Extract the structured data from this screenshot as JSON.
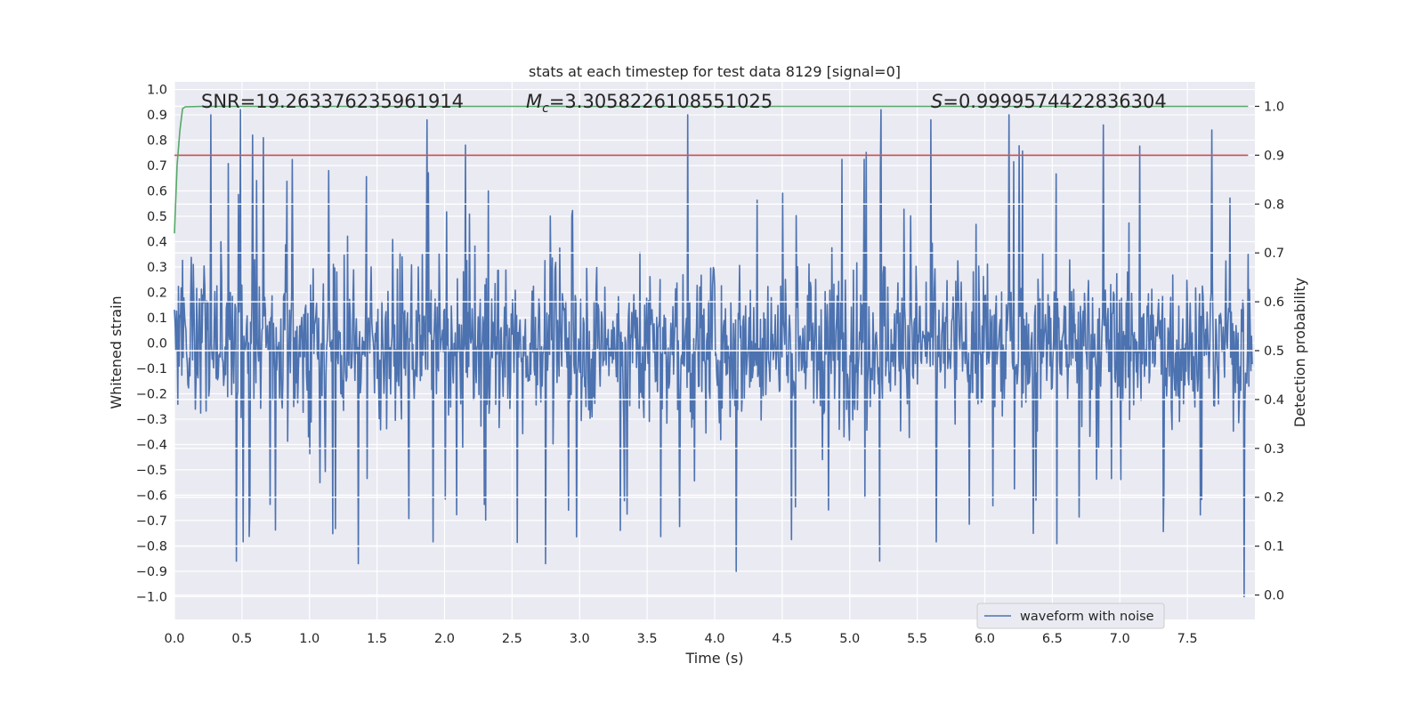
{
  "chart_data": {
    "type": "line",
    "title": "stats at each timestep for test data 8129 [signal=0]",
    "xlabel": "Time (s)",
    "ylabel_left": "Whitened strain",
    "ylabel_right": "Detection probability",
    "xlim": [
      0.0,
      8.0
    ],
    "ylim_left": [
      -1.09,
      1.03
    ],
    "ylim_right": [
      -0.05,
      1.05
    ],
    "grid": true,
    "xticks": [
      "0.0",
      "0.5",
      "1.0",
      "1.5",
      "2.0",
      "2.5",
      "3.0",
      "3.5",
      "4.0",
      "4.5",
      "5.0",
      "5.5",
      "6.0",
      "6.5",
      "7.0",
      "7.5"
    ],
    "yticks_left": [
      "1.0",
      "0.9",
      "0.8",
      "0.7",
      "0.6",
      "0.5",
      "0.4",
      "0.3",
      "0.2",
      "0.1",
      "0.0",
      "−0.1",
      "−0.2",
      "−0.3",
      "−0.4",
      "−0.5",
      "−0.6",
      "−0.7",
      "−0.8",
      "−0.9",
      "−1.0"
    ],
    "yticks_right": [
      "1.0",
      "0.9",
      "0.8",
      "0.7",
      "0.6",
      "0.5",
      "0.4",
      "0.3",
      "0.2",
      "0.1",
      "0.0"
    ],
    "annotations": {
      "snr": "SNR=19.263376235961914",
      "mc_symbol": "M",
      "mc_sub": "c",
      "mc_value": "=3.3058226108551025",
      "s_symbol": "S",
      "s_value": "=0.9999574422836304"
    },
    "series": [
      {
        "name": "waveform with noise",
        "axis": "left",
        "color": "#4c72b0",
        "description": "dense noise trace, values mostly within -0.6..0.6 with spikes to about 0.92 and -1.0",
        "peaks_high": [
          {
            "t": 0.27,
            "v": 0.9
          },
          {
            "t": 0.49,
            "v": 0.92
          },
          {
            "t": 0.58,
            "v": 0.82
          },
          {
            "t": 0.66,
            "v": 0.81
          },
          {
            "t": 1.87,
            "v": 0.88
          },
          {
            "t": 3.8,
            "v": 0.9
          },
          {
            "t": 5.23,
            "v": 0.92
          },
          {
            "t": 5.6,
            "v": 0.88
          },
          {
            "t": 6.18,
            "v": 0.9
          },
          {
            "t": 6.88,
            "v": 0.86
          },
          {
            "t": 7.68,
            "v": 0.84
          }
        ],
        "peaks_low": [
          {
            "t": 0.46,
            "v": -0.86
          },
          {
            "t": 1.36,
            "v": -0.87
          },
          {
            "t": 2.75,
            "v": -0.87
          },
          {
            "t": 4.16,
            "v": -0.9
          },
          {
            "t": 5.22,
            "v": -0.86
          },
          {
            "t": 7.92,
            "v": -1.0
          }
        ]
      },
      {
        "name": "detection probability",
        "axis": "right",
        "color": "#55a868",
        "x": [
          0.0,
          0.02,
          0.04,
          0.06,
          0.08,
          0.2,
          1.0,
          2.0,
          3.0,
          4.0,
          5.0,
          6.0,
          7.0,
          7.95
        ],
        "y": [
          0.74,
          0.88,
          0.95,
          0.995,
          0.999,
          1.0,
          1.0,
          1.0,
          1.0,
          1.0,
          1.0,
          1.0,
          1.0,
          1.0
        ]
      },
      {
        "name": "threshold",
        "axis": "right",
        "color": "#c44e52",
        "x": [
          0.0,
          7.95
        ],
        "y": [
          0.9,
          0.9
        ]
      }
    ],
    "legend": {
      "position": "lower right",
      "entries": [
        "waveform with noise"
      ]
    }
  }
}
